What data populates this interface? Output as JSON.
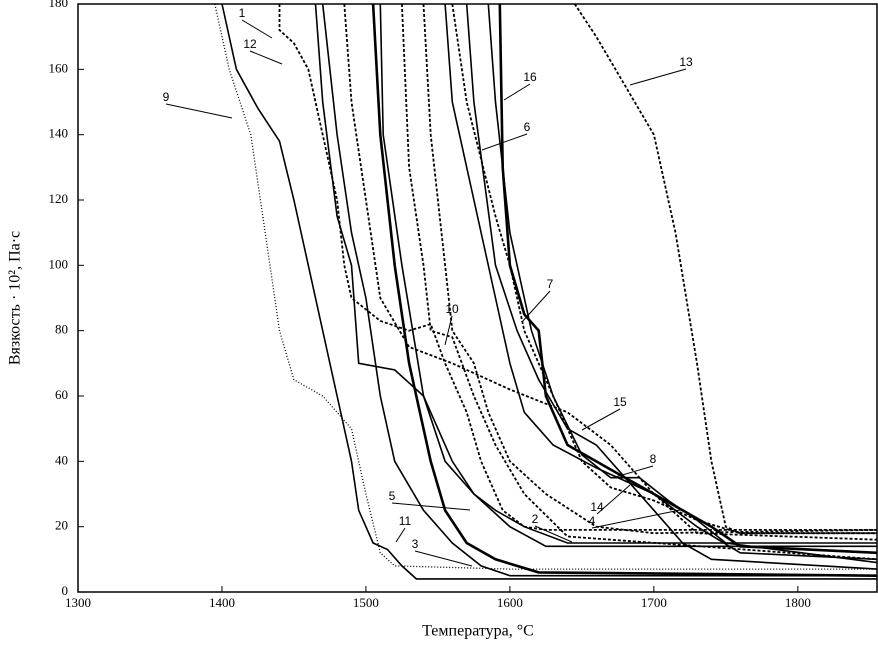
{
  "chart_data": {
    "type": "line",
    "x_label": "Температура, °C",
    "y_label": "Вязкость · 10², Па·с",
    "xlim": [
      1300,
      1855
    ],
    "ylim": [
      0,
      180
    ],
    "xticks": [
      1300,
      1400,
      1500,
      1600,
      1700,
      1800
    ],
    "yticks": [
      0,
      20,
      40,
      60,
      80,
      100,
      120,
      140,
      160,
      180
    ],
    "grid": false,
    "series": [
      {
        "name": "1",
        "color": "#000",
        "style": "dashed",
        "x": [
          1440,
          1440,
          1450,
          1460,
          1470,
          1480,
          1485,
          1490,
          1510,
          1530,
          1545,
          1555,
          1570,
          1580,
          1595,
          1610,
          1625,
          1855
        ],
        "values": [
          180,
          172,
          168,
          160,
          140,
          120,
          100,
          90,
          83,
          80,
          82,
          70,
          55,
          40,
          25,
          20,
          19,
          19
        ]
      },
      {
        "name": "2",
        "color": "#000",
        "style": "solid",
        "x": [
          1465,
          1470,
          1480,
          1490,
          1495,
          1520,
          1540,
          1560,
          1575,
          1590,
          1610,
          1640,
          1855
        ],
        "values": [
          180,
          150,
          115,
          100,
          70,
          68,
          60,
          40,
          30,
          25,
          20,
          15,
          15
        ]
      },
      {
        "name": "3",
        "color": "#000",
        "style": "bold",
        "x": [
          1505,
          1510,
          1520,
          1530,
          1545,
          1555,
          1570,
          1590,
          1620,
          1855
        ],
        "values": [
          180,
          140,
          100,
          70,
          40,
          25,
          15,
          10,
          6,
          5
        ]
      },
      {
        "name": "4",
        "color": "#000",
        "style": "dashed",
        "x": [
          1540,
          1545,
          1555,
          1560,
          1575,
          1585,
          1600,
          1625,
          1660,
          1700,
          1855
        ],
        "values": [
          180,
          140,
          100,
          80,
          70,
          55,
          40,
          30,
          20,
          18,
          19
        ]
      },
      {
        "name": "5",
        "color": "#000",
        "style": "solid",
        "x": [
          1510,
          1512,
          1525,
          1540,
          1555,
          1575,
          1600,
          1625,
          1855
        ],
        "values": [
          180,
          140,
          100,
          60,
          40,
          30,
          20,
          14,
          14
        ]
      },
      {
        "name": "6",
        "color": "#000",
        "style": "solid",
        "x": [
          1555,
          1560,
          1575,
          1590,
          1600,
          1610,
          1630,
          1660,
          1700,
          1730,
          1760,
          1855
        ],
        "values": [
          180,
          150,
          120,
          90,
          70,
          55,
          45,
          38,
          30,
          20,
          12,
          10
        ]
      },
      {
        "name": "7",
        "color": "#000",
        "style": "solid",
        "x": [
          1570,
          1575,
          1590,
          1605,
          1620,
          1640,
          1660,
          1680,
          1700,
          1720,
          1740,
          1855
        ],
        "values": [
          180,
          150,
          100,
          80,
          65,
          50,
          45,
          35,
          25,
          15,
          10,
          7
        ]
      },
      {
        "name": "8",
        "color": "#000",
        "style": "solid",
        "x": [
          1585,
          1590,
          1600,
          1615,
          1630,
          1650,
          1670,
          1690,
          1710,
          1730,
          1750,
          1855
        ],
        "values": [
          180,
          150,
          110,
          80,
          60,
          42,
          35,
          35,
          28,
          22,
          15,
          9
        ]
      },
      {
        "name": "9",
        "color": "#000",
        "style": "dotted",
        "x": [
          1395,
          1405,
          1420,
          1430,
          1440,
          1450,
          1470,
          1490,
          1500,
          1510,
          1520,
          1600,
          1855
        ],
        "values": [
          180,
          160,
          140,
          110,
          80,
          65,
          60,
          50,
          30,
          12,
          8,
          7,
          7
        ]
      },
      {
        "name": "10",
        "color": "#000",
        "style": "dashed",
        "x": [
          1525,
          1530,
          1540,
          1545,
          1560,
          1575,
          1590,
          1610,
          1640,
          1855
        ],
        "values": [
          180,
          130,
          100,
          80,
          78,
          60,
          45,
          30,
          17,
          10
        ]
      },
      {
        "name": "11",
        "color": "#000",
        "style": "solid",
        "x": [
          1470,
          1480,
          1490,
          1500,
          1510,
          1520,
          1540,
          1560,
          1580,
          1600,
          1855
        ],
        "values": [
          180,
          140,
          110,
          90,
          60,
          40,
          25,
          15,
          8,
          5,
          5
        ]
      },
      {
        "name": "12",
        "color": "#000",
        "style": "solid",
        "x": [
          1400,
          1410,
          1425,
          1440,
          1450,
          1460,
          1470,
          1480,
          1490,
          1495,
          1505,
          1515,
          1525,
          1535,
          1855
        ],
        "values": [
          180,
          160,
          148,
          138,
          120,
          100,
          80,
          60,
          40,
          25,
          15,
          13,
          8,
          4,
          4
        ]
      },
      {
        "name": "13",
        "color": "#000",
        "style": "dashed",
        "x": [
          1645,
          1660,
          1680,
          1700,
          1715,
          1730,
          1740,
          1750,
          1760,
          1855
        ],
        "values": [
          180,
          170,
          155,
          140,
          110,
          70,
          40,
          20,
          18,
          18
        ]
      },
      {
        "name": "14",
        "color": "#000",
        "style": "dashed",
        "x": [
          1560,
          1570,
          1590,
          1600,
          1610,
          1630,
          1650,
          1670,
          1700,
          1730,
          1760,
          1855
        ],
        "values": [
          180,
          150,
          115,
          100,
          80,
          60,
          40,
          32,
          28,
          22,
          18,
          18
        ]
      },
      {
        "name": "15",
        "color": "#000",
        "style": "dashed",
        "x": [
          1485,
          1490,
          1500,
          1510,
          1530,
          1560,
          1600,
          1640,
          1670,
          1700,
          1730,
          1855
        ],
        "values": [
          180,
          150,
          120,
          90,
          75,
          70,
          62,
          55,
          45,
          30,
          18,
          16
        ]
      },
      {
        "name": "16",
        "color": "#000",
        "style": "bold",
        "x": [
          1593,
          1595,
          1600,
          1610,
          1620,
          1625,
          1640,
          1680,
          1700,
          1720,
          1740,
          1760,
          1855
        ],
        "values": [
          180,
          130,
          100,
          85,
          80,
          60,
          45,
          35,
          30,
          25,
          20,
          14,
          12
        ]
      }
    ]
  }
}
